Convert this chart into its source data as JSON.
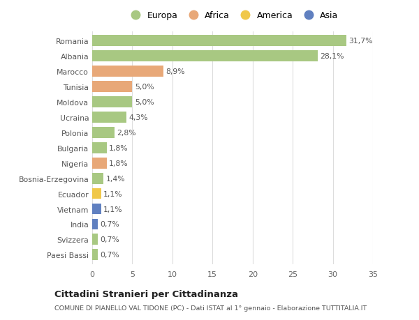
{
  "countries": [
    "Romania",
    "Albania",
    "Marocco",
    "Tunisia",
    "Moldova",
    "Ucraina",
    "Polonia",
    "Bulgaria",
    "Nigeria",
    "Bosnia-Erzegovina",
    "Ecuador",
    "Vietnam",
    "India",
    "Svizzera",
    "Paesi Bassi"
  ],
  "values": [
    31.7,
    28.1,
    8.9,
    5.0,
    5.0,
    4.3,
    2.8,
    1.8,
    1.8,
    1.4,
    1.1,
    1.1,
    0.7,
    0.7,
    0.7
  ],
  "labels": [
    "31,7%",
    "28,1%",
    "8,9%",
    "5,0%",
    "5,0%",
    "4,3%",
    "2,8%",
    "1,8%",
    "1,8%",
    "1,4%",
    "1,1%",
    "1,1%",
    "0,7%",
    "0,7%",
    "0,7%"
  ],
  "continents": [
    "Europa",
    "Europa",
    "Africa",
    "Africa",
    "Europa",
    "Europa",
    "Europa",
    "Europa",
    "Africa",
    "Europa",
    "America",
    "Asia",
    "Asia",
    "Europa",
    "Europa"
  ],
  "colors": {
    "Europa": "#a8c882",
    "Africa": "#e8a878",
    "America": "#f0c84a",
    "Asia": "#6080c0"
  },
  "legend_order": [
    "Europa",
    "Africa",
    "America",
    "Asia"
  ],
  "title": "Cittadini Stranieri per Cittadinanza",
  "subtitle": "COMUNE DI PIANELLO VAL TIDONE (PC) - Dati ISTAT al 1° gennaio - Elaborazione TUTTITALIA.IT",
  "xlim": [
    0,
    35
  ],
  "xticks": [
    0,
    5,
    10,
    15,
    20,
    25,
    30,
    35
  ],
  "background_color": "#ffffff",
  "grid_color": "#dddddd"
}
